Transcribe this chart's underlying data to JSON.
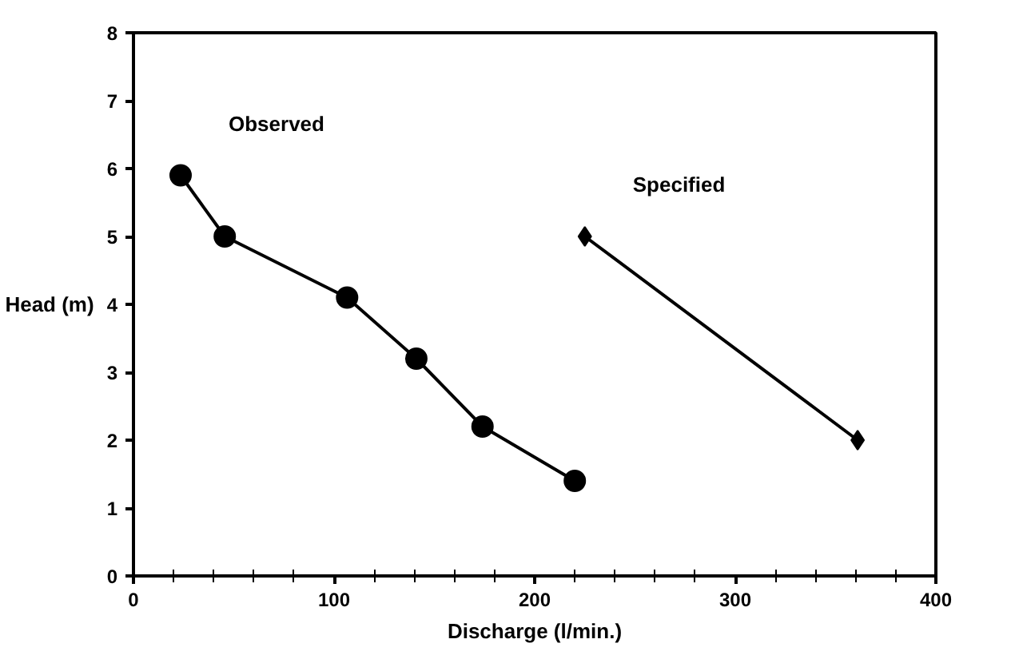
{
  "chart_data": {
    "type": "line",
    "xlabel": "Discharge (l/min.)",
    "ylabel": "Head (m)",
    "xlim": [
      0,
      400
    ],
    "ylim": [
      0,
      8
    ],
    "xticks": [
      0,
      100,
      200,
      300,
      400
    ],
    "yticks": [
      0,
      1,
      2,
      3,
      4,
      5,
      6,
      7,
      8
    ],
    "grid": false,
    "series": [
      {
        "name": "Observed",
        "color": "#000000",
        "marker": "circle",
        "x": [
          23.5,
          45.5,
          106.5,
          141,
          174,
          220
        ],
        "values": [
          5.9,
          5.0,
          4.1,
          3.2,
          2.2,
          1.4
        ]
      },
      {
        "name": "Specified",
        "color": "#000000",
        "marker": "diamond",
        "x": [
          225,
          361
        ],
        "values": [
          5.0,
          2.0
        ]
      }
    ]
  }
}
